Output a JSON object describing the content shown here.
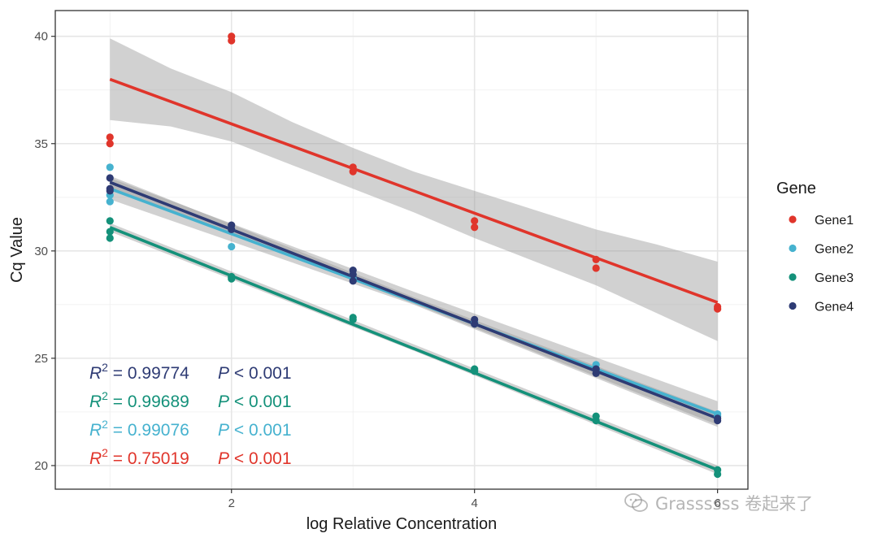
{
  "chart_data": {
    "type": "scatter",
    "xlabel": "log Relative Concentration",
    "ylabel": "Cq Value",
    "xlim": [
      0.55,
      6.25
    ],
    "ylim": [
      18.9,
      41.2
    ],
    "xticks": [
      2,
      4,
      6
    ],
    "yticks": [
      20,
      25,
      30,
      35,
      40
    ],
    "grid": true,
    "legend": {
      "title": "Gene",
      "placement": "right"
    },
    "series": [
      {
        "name": "Gene1",
        "color": "#E0352B",
        "points": [
          [
            1,
            35.3
          ],
          [
            1,
            35.0
          ],
          [
            2,
            40.0
          ],
          [
            2,
            39.8
          ],
          [
            3,
            33.9
          ],
          [
            3,
            33.7
          ],
          [
            4,
            31.4
          ],
          [
            4,
            31.1
          ],
          [
            5,
            29.6
          ],
          [
            5,
            29.2
          ],
          [
            6,
            27.4
          ],
          [
            6,
            27.3
          ]
        ],
        "fit": [
          [
            1,
            38.0
          ],
          [
            6,
            27.6
          ]
        ],
        "band": {
          "x": [
            1,
            1.5,
            2,
            2.5,
            3,
            3.5,
            4,
            4.5,
            5,
            5.5,
            6
          ],
          "lo": [
            36.1,
            35.8,
            35.1,
            34.0,
            32.9,
            31.8,
            30.6,
            29.5,
            28.4,
            27.1,
            25.8
          ],
          "hi": [
            39.9,
            38.5,
            37.4,
            36.0,
            34.8,
            33.7,
            32.8,
            31.9,
            31.0,
            30.3,
            29.5
          ]
        },
        "annotation": {
          "r2": "0.75019",
          "p": "0.001"
        }
      },
      {
        "name": "Gene2",
        "color": "#46B2CF",
        "points": [
          [
            1,
            33.9
          ],
          [
            1,
            32.6
          ],
          [
            1,
            32.3
          ],
          [
            2,
            31.0
          ],
          [
            2,
            30.2
          ],
          [
            3,
            28.9
          ],
          [
            3,
            28.7
          ],
          [
            4,
            26.7
          ],
          [
            4,
            26.6
          ],
          [
            5,
            24.7
          ],
          [
            5,
            24.5
          ],
          [
            6,
            22.4
          ],
          [
            6,
            22.3
          ]
        ],
        "fit": [
          [
            1,
            32.9
          ],
          [
            6,
            22.4
          ]
        ],
        "band": {
          "x": [
            1,
            3.5,
            6
          ],
          "lo": [
            32.4,
            27.5,
            21.8
          ],
          "hi": [
            33.4,
            28.1,
            23.0
          ]
        },
        "annotation": {
          "r2": "0.99076",
          "p": "0.001"
        }
      },
      {
        "name": "Gene3",
        "color": "#14917A",
        "points": [
          [
            1,
            31.4
          ],
          [
            1,
            30.9
          ],
          [
            1,
            30.6
          ],
          [
            2,
            28.8
          ],
          [
            2,
            28.7
          ],
          [
            3,
            26.9
          ],
          [
            3,
            26.8
          ],
          [
            4,
            24.5
          ],
          [
            4,
            24.4
          ],
          [
            5,
            22.3
          ],
          [
            5,
            22.1
          ],
          [
            6,
            19.8
          ],
          [
            6,
            19.6
          ]
        ],
        "fit": [
          [
            1,
            31.1
          ],
          [
            6,
            19.8
          ]
        ],
        "band": {
          "x": [
            1,
            3.5,
            6
          ],
          "lo": [
            30.9,
            25.35,
            19.6
          ],
          "hi": [
            31.3,
            25.65,
            20.0
          ]
        },
        "annotation": {
          "r2": "0.99689",
          "p": "0.001"
        }
      },
      {
        "name": "Gene4",
        "color": "#2E3B74",
        "points": [
          [
            1,
            33.4
          ],
          [
            1,
            32.9
          ],
          [
            1,
            32.8
          ],
          [
            2,
            31.2
          ],
          [
            2,
            31.0
          ],
          [
            3,
            29.1
          ],
          [
            3,
            28.9
          ],
          [
            3,
            28.6
          ],
          [
            4,
            26.8
          ],
          [
            4,
            26.6
          ],
          [
            5,
            24.5
          ],
          [
            5,
            24.3
          ],
          [
            6,
            22.2
          ],
          [
            6,
            22.1
          ]
        ],
        "fit": [
          [
            1,
            33.2
          ],
          [
            6,
            22.2
          ]
        ],
        "band": {
          "x": [
            1,
            3.5,
            6
          ],
          "lo": [
            32.9,
            27.55,
            21.9
          ],
          "hi": [
            33.5,
            27.85,
            22.5
          ]
        },
        "annotation": {
          "r2": "0.99774",
          "p": "0.001"
        }
      }
    ],
    "annotation_order": [
      "Gene4",
      "Gene3",
      "Gene2",
      "Gene1"
    ],
    "annotation_template": {
      "r2_label": "R",
      "r2_sup": "2",
      "eq": " = ",
      "p_label": "P",
      "p_op": " < "
    }
  },
  "watermark": {
    "text": "Grassssss 卷起来了",
    "icon": "wechat-icon"
  }
}
